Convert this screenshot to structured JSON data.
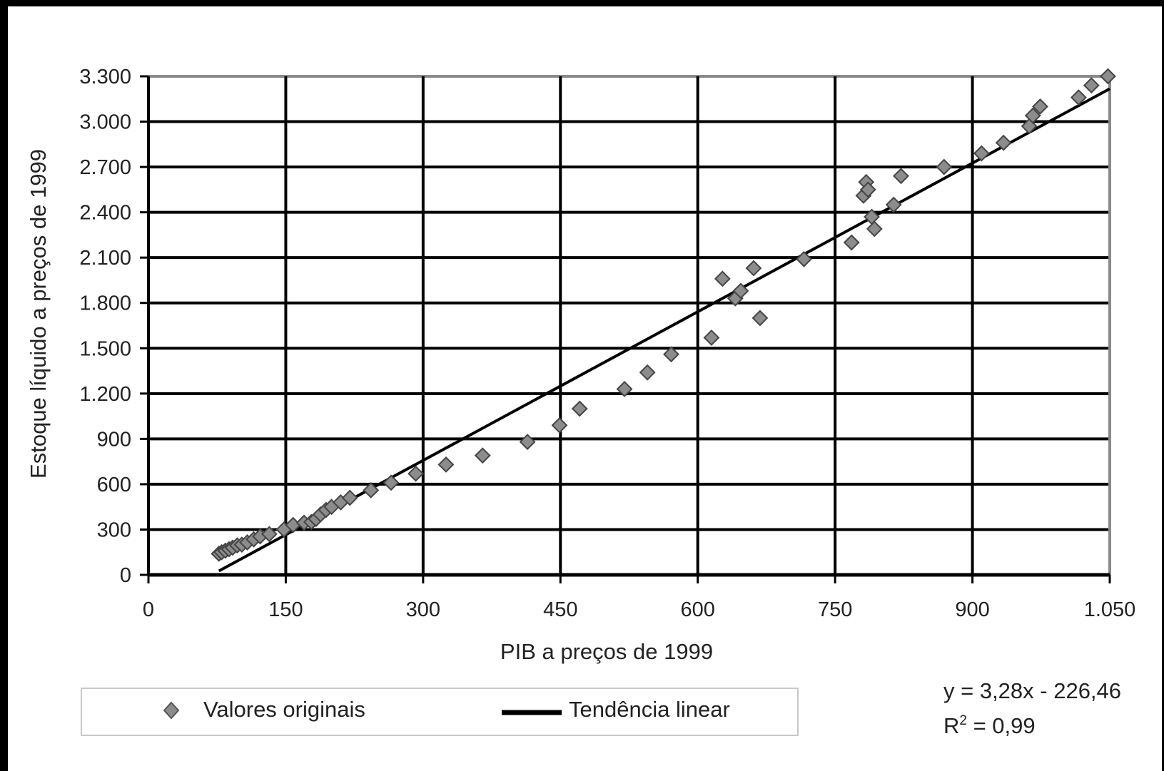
{
  "chart_data": {
    "type": "scatter",
    "xlabel": "PIB a preços de 1999",
    "ylabel": "Estoque líquido a preços de 1999",
    "xlim": [
      0,
      1050
    ],
    "ylim": [
      0,
      3300
    ],
    "x_ticks": [
      0,
      150,
      300,
      450,
      600,
      750,
      900,
      1050
    ],
    "x_tick_labels": [
      "0",
      "150",
      "300",
      "450",
      "600",
      "750",
      "900",
      "1.050"
    ],
    "y_ticks": [
      0,
      300,
      600,
      900,
      1200,
      1500,
      1800,
      2100,
      2400,
      2700,
      3000,
      3300
    ],
    "y_tick_labels": [
      "0",
      "300",
      "600",
      "900",
      "1.200",
      "1.500",
      "1.800",
      "2.100",
      "2.400",
      "2.700",
      "3.000",
      "3.300"
    ],
    "grid": true,
    "legend_placement": "bottom",
    "series": [
      {
        "name": "Valores originais",
        "marker": "diamond",
        "color": "#8c8c8c",
        "points": [
          [
            77,
            140
          ],
          [
            80,
            150
          ],
          [
            84,
            160
          ],
          [
            88,
            170
          ],
          [
            92,
            180
          ],
          [
            97,
            195
          ],
          [
            102,
            200
          ],
          [
            108,
            215
          ],
          [
            115,
            235
          ],
          [
            122,
            255
          ],
          [
            132,
            270
          ],
          [
            148,
            300
          ],
          [
            158,
            330
          ],
          [
            170,
            345
          ],
          [
            178,
            350
          ],
          [
            183,
            370
          ],
          [
            188,
            400
          ],
          [
            194,
            430
          ],
          [
            200,
            450
          ],
          [
            210,
            480
          ],
          [
            220,
            510
          ],
          [
            243,
            560
          ],
          [
            265,
            610
          ],
          [
            292,
            670
          ],
          [
            325,
            730
          ],
          [
            365,
            790
          ],
          [
            414,
            880
          ],
          [
            449,
            990
          ],
          [
            471,
            1100
          ],
          [
            520,
            1230
          ],
          [
            545,
            1340
          ],
          [
            571,
            1460
          ],
          [
            615,
            1570
          ],
          [
            627,
            1960
          ],
          [
            641,
            1830
          ],
          [
            647,
            1880
          ],
          [
            661,
            2030
          ],
          [
            668,
            1700
          ],
          [
            716,
            2090
          ],
          [
            768,
            2200
          ],
          [
            781,
            2510
          ],
          [
            784,
            2600
          ],
          [
            786,
            2550
          ],
          [
            790,
            2370
          ],
          [
            793,
            2290
          ],
          [
            814,
            2450
          ],
          [
            822,
            2640
          ],
          [
            869,
            2700
          ],
          [
            910,
            2790
          ],
          [
            934,
            2860
          ],
          [
            962,
            2970
          ],
          [
            966,
            3040
          ],
          [
            974,
            3100
          ],
          [
            1016,
            3160
          ],
          [
            1030,
            3240
          ],
          [
            1048,
            3300
          ]
        ]
      },
      {
        "name": "Tendência linear",
        "marker": "line",
        "color": "#000000",
        "slope": 3.28,
        "intercept": -226.46,
        "x_range": [
          77,
          1050
        ]
      }
    ],
    "annotations": [
      "y = 3,28x - 226,46",
      "R² = 0,99"
    ]
  },
  "legend": {
    "items": [
      {
        "label": "Valores originais",
        "icon": "diamond-marker"
      },
      {
        "label": "Tendência linear",
        "icon": "line-marker"
      }
    ]
  },
  "equation": {
    "line1": "y = 3,28x - 226,46",
    "line2_prefix": "R",
    "line2_sup": "2",
    "line2_suffix": " = 0,99"
  }
}
